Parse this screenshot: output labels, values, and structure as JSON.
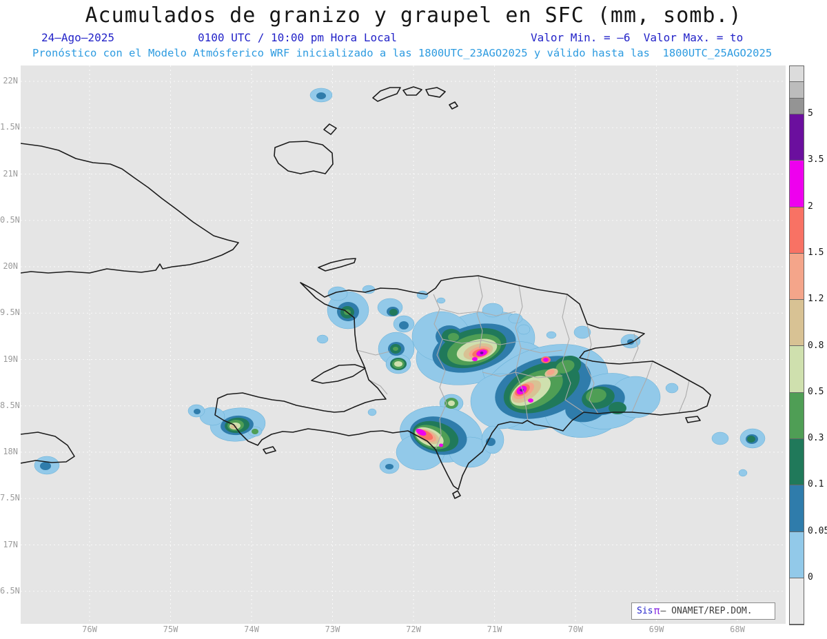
{
  "header": {
    "title": "Acumulados de granizo y graupel en SFC (mm, somb.)",
    "date": "24–Ago–2025",
    "time": "0100 UTC / 10:00 pm Hora Local",
    "min_max": "Valor Min. = –6  Valor Max. = to",
    "model_line": "Pronóstico con el Modelo Atmósferico WRF inicializado a las 1800UTC_23AGO2025 y válido hasta las  1800UTC_25AGO2025"
  },
  "axes": {
    "lat_ticks": [
      "22N",
      "1.5N",
      "21N",
      "0.5N",
      "20N",
      "9.5N",
      "19N",
      "8.5N",
      "18N",
      "7.5N",
      "17N",
      "6.5N"
    ],
    "lon_ticks": [
      "76W",
      "75W",
      "74W",
      "73W",
      "72W",
      "71W",
      "70W",
      "69W",
      "68W"
    ]
  },
  "colorbar": {
    "tick_labels": [
      "5",
      "3.5",
      "2",
      "1.5",
      "1.2",
      "0.8",
      "0.5",
      "0.3",
      "0.1",
      "0.05",
      "0"
    ],
    "colors_top_to_bottom": [
      "#dcdcdc",
      "#bcbcbc",
      "#949494",
      "#6b0f9e",
      "#ee00ee",
      "#f87264",
      "#f4a58a",
      "#d8c294",
      "#cfe0ae",
      "#4f9e55",
      "#20795a",
      "#2f7cab",
      "#92c9e9",
      "#e9e9e9"
    ]
  },
  "branding": {
    "sis": "Sis",
    "pi": "π",
    "rest": "– ONAMET/REP.DOM."
  }
}
